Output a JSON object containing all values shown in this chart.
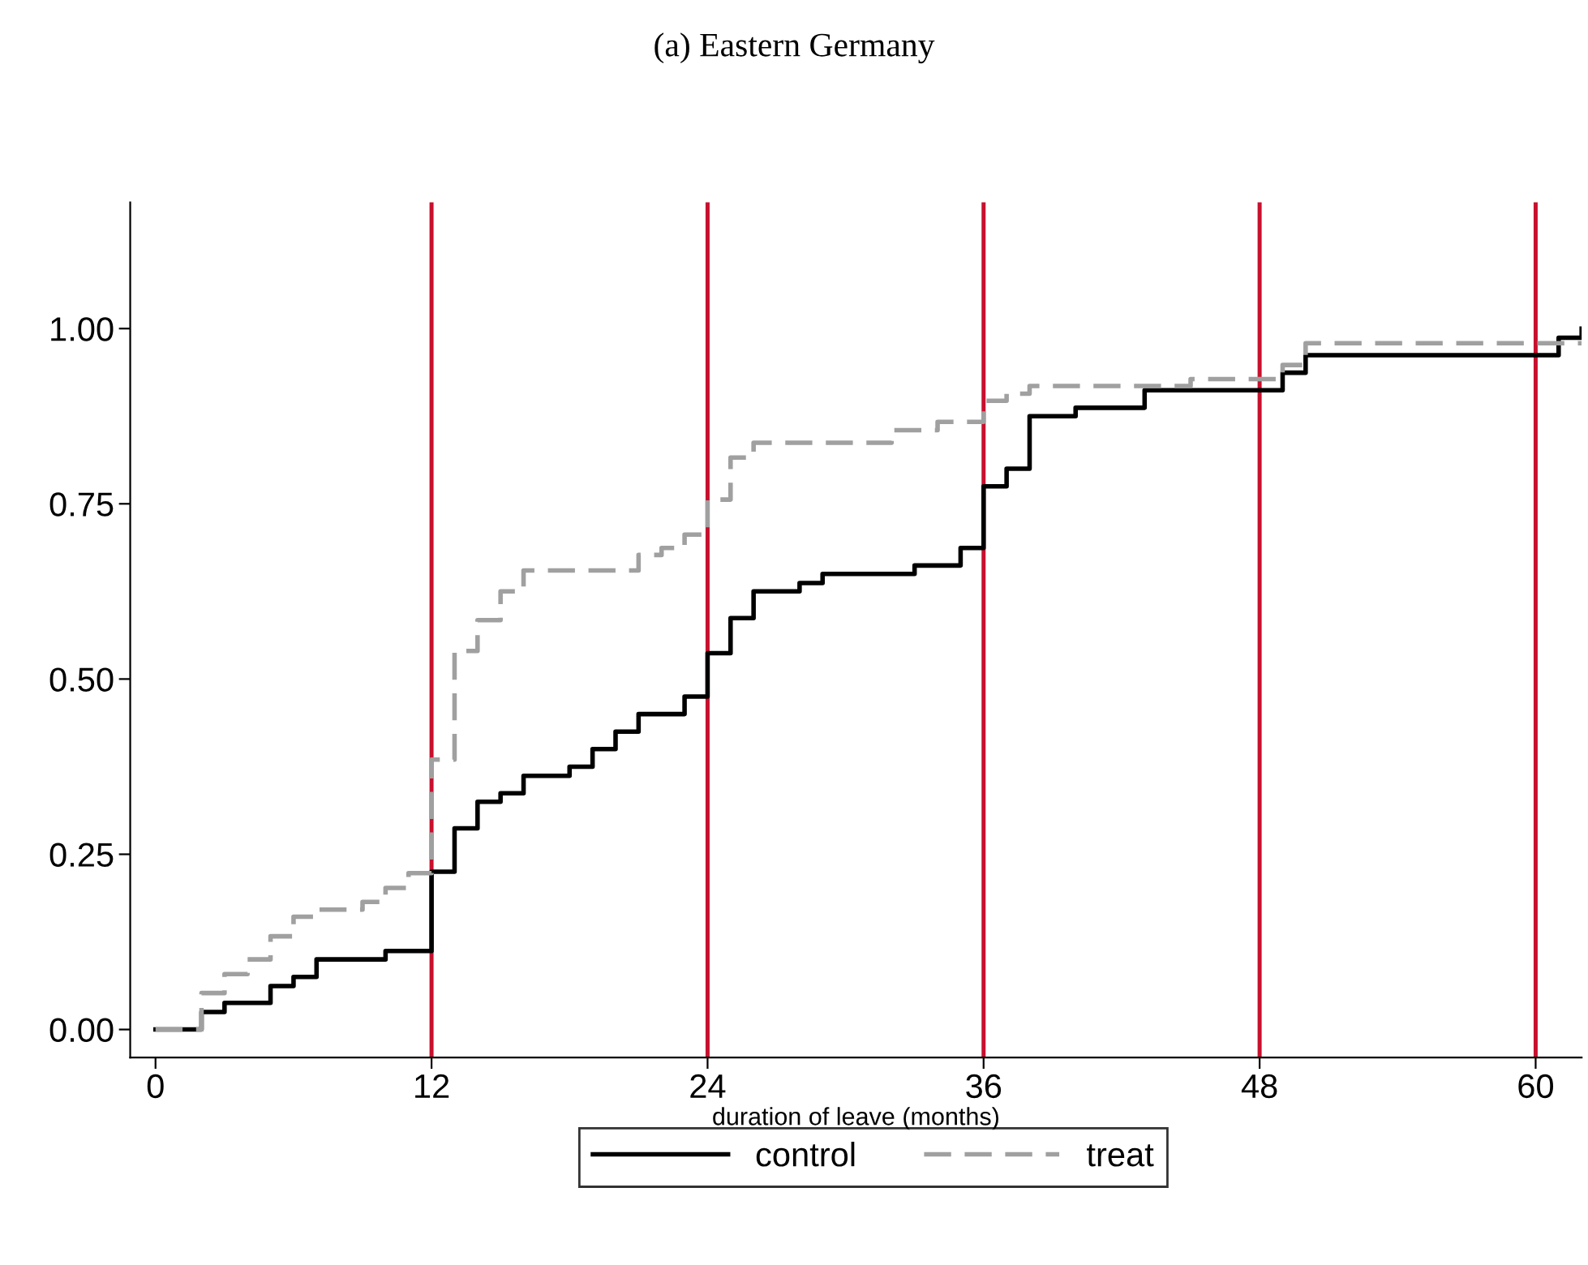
{
  "chart_data": {
    "type": "step",
    "title": "(a) Eastern Germany",
    "xlabel": "duration of leave (months)",
    "xlim": [
      -1.1,
      62
    ],
    "ylim": [
      -0.04,
      1.18
    ],
    "xticks": [
      0,
      12,
      24,
      36,
      48,
      60
    ],
    "yticks": [
      {
        "value": 0,
        "label": "0.00"
      },
      {
        "value": 0.25,
        "label": "0.25"
      },
      {
        "value": 0.5,
        "label": "0.50"
      },
      {
        "value": 0.75,
        "label": "0.75"
      },
      {
        "value": 1,
        "label": "1.00"
      }
    ],
    "grid": false,
    "legend": "bottom",
    "marker": "none",
    "series": [
      {
        "name": "control",
        "color": "#000000",
        "line_style": "solid",
        "x": [
          0,
          2,
          3,
          5,
          6,
          7,
          10,
          12,
          13,
          14,
          15,
          16,
          18,
          19,
          20,
          21,
          23,
          24,
          25,
          26,
          28,
          29,
          33,
          35,
          36,
          37,
          38,
          40,
          43,
          49,
          50,
          61,
          62
        ],
        "values": [
          0,
          0.025,
          0.038,
          0.062,
          0.075,
          0.1,
          0.112,
          0.225,
          0.287,
          0.325,
          0.337,
          0.362,
          0.375,
          0.4,
          0.425,
          0.45,
          0.475,
          0.537,
          0.587,
          0.625,
          0.637,
          0.65,
          0.662,
          0.687,
          0.775,
          0.8,
          0.875,
          0.887,
          0.912,
          0.937,
          0.962,
          0.987,
          1.0
        ]
      },
      {
        "name": "treat",
        "color": "#a0a0a0",
        "line_style": "dashed",
        "x": [
          0,
          2,
          3,
          4,
          5,
          6,
          7,
          9,
          10,
          11,
          12,
          13,
          14,
          15,
          16,
          21,
          22,
          23,
          24,
          25,
          26,
          32,
          34,
          36,
          37,
          38,
          45,
          49,
          50,
          62
        ],
        "values": [
          0,
          0.052,
          0.079,
          0.1,
          0.133,
          0.161,
          0.171,
          0.182,
          0.202,
          0.223,
          0.385,
          0.54,
          0.584,
          0.625,
          0.655,
          0.677,
          0.687,
          0.706,
          0.756,
          0.816,
          0.837,
          0.855,
          0.867,
          0.897,
          0.907,
          0.918,
          0.928,
          0.948,
          0.979,
          0.979
        ]
      }
    ],
    "ref_lines": [
      {
        "axis": "x",
        "value": 12,
        "color": "#c8102e"
      },
      {
        "axis": "x",
        "value": 24,
        "color": "#c8102e"
      },
      {
        "axis": "x",
        "value": 36,
        "color": "#c8102e"
      },
      {
        "axis": "x",
        "value": 48,
        "color": "#c8102e"
      },
      {
        "axis": "x",
        "value": 60,
        "color": "#c8102e"
      }
    ]
  }
}
